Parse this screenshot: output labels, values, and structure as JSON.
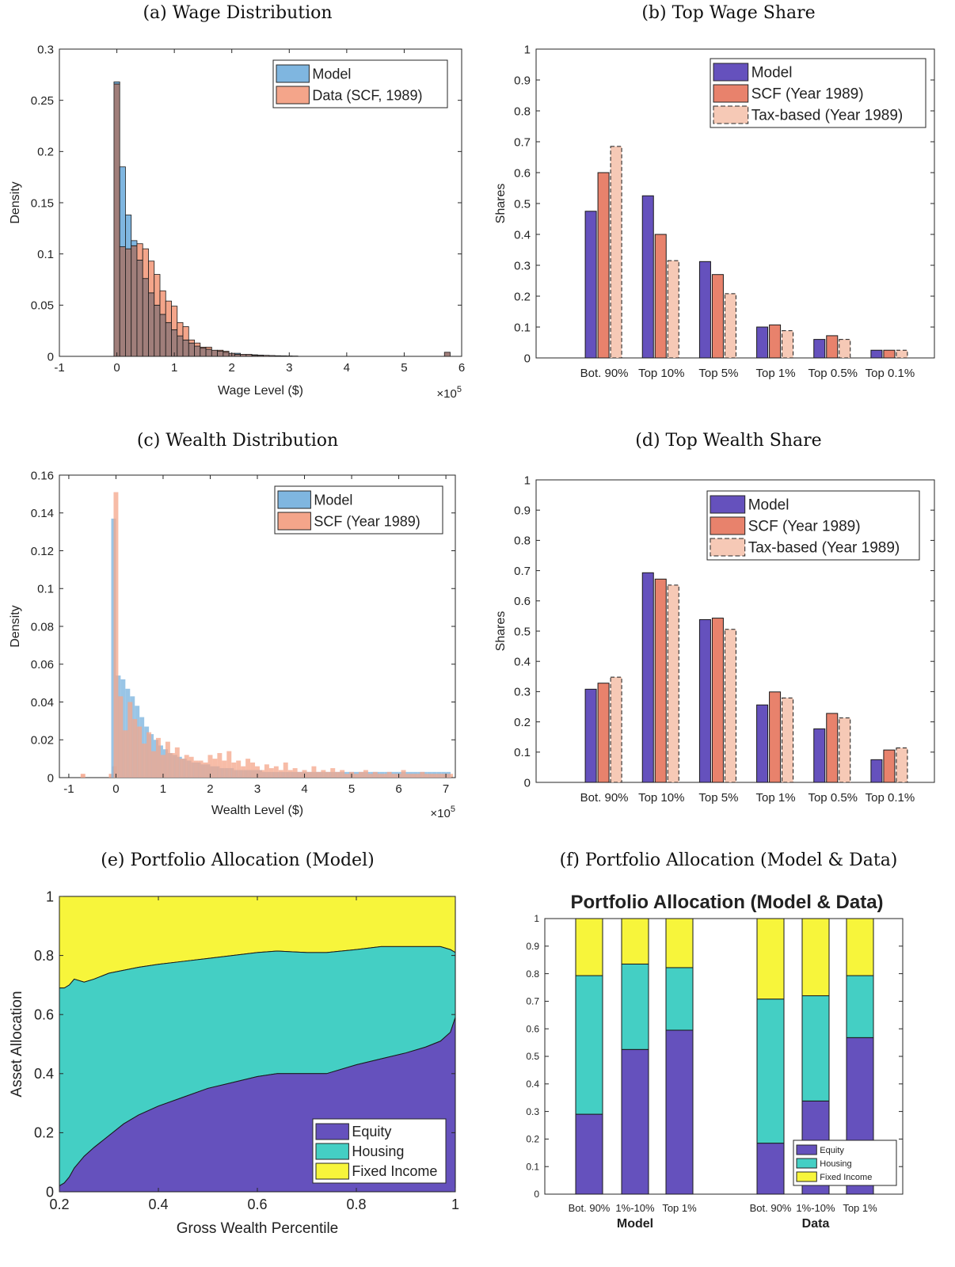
{
  "captions": {
    "a": "(a) Wage Distribution",
    "b": "(b) Top Wage Share",
    "c": "(c) Wealth Distribution",
    "d": "(d) Top Wealth Share",
    "e": "(e) Portfolio Allocation (Model)",
    "f": "(f) Portfolio Allocation (Model & Data)"
  },
  "colors": {
    "model_blue": "#7fb6e0",
    "data_orange": "#f4a58a",
    "overlap": "#a07e7a",
    "model_purple": "#6551bd",
    "scf_red": "#e8826c",
    "tax_pink": "#f6c9b6",
    "equity": "#6551bd",
    "housing": "#44cfc4",
    "fixed_income": "#f7f53b"
  },
  "chart_data": [
    {
      "id": "a",
      "type": "bar",
      "xlabel": "Wage Level ($)",
      "ylabel": "Density",
      "x_multiplier": "×10^5",
      "xlim": [
        -1,
        6
      ],
      "ylim": [
        0,
        0.3
      ],
      "xticks": [
        "-1",
        "0",
        "1",
        "2",
        "3",
        "4",
        "5",
        "6"
      ],
      "yticks": [
        "0",
        "0.05",
        "0.1",
        "0.15",
        "0.2",
        "0.25",
        "0.3"
      ],
      "bin_width": 0.1,
      "bin_start": -0.05,
      "legend": [
        "Model",
        "Data (SCF, 1989)"
      ],
      "series": [
        {
          "name": "Model",
          "values": [
            0.268,
            0.185,
            0.138,
            0.113,
            0.094,
            0.076,
            0.062,
            0.05,
            0.041,
            0.033,
            0.026,
            0.02,
            0.016,
            0.013,
            0.01,
            0.008,
            0.007,
            0.006,
            0.005,
            0.004,
            0.003,
            0.003,
            0.002,
            0.002,
            0.0015,
            0.0012,
            0.001,
            0.0008,
            0.0006,
            0.0005,
            0.0004,
            0.0003
          ]
        },
        {
          "name": "Data (SCF, 1989)",
          "values": [
            0.266,
            0.107,
            0.105,
            0.108,
            0.11,
            0.105,
            0.093,
            0.08,
            0.064,
            0.054,
            0.049,
            0.033,
            0.029,
            0.016,
            0.013,
            0.009,
            0.009,
            0.006,
            0.006,
            0.005,
            0.003,
            0.002,
            0.002,
            0.002,
            0.001,
            0.001,
            0.001,
            0.0008,
            0.0006,
            0.0005,
            0.0004,
            0.0003
          ]
        }
      ],
      "outlier": {
        "x": 5.75,
        "value": 0.004
      }
    },
    {
      "id": "b",
      "type": "bar",
      "ylabel": "Shares",
      "ylim": [
        0,
        1
      ],
      "yticks": [
        "0",
        "0.1",
        "0.2",
        "0.3",
        "0.4",
        "0.5",
        "0.6",
        "0.7",
        "0.8",
        "0.9",
        "1"
      ],
      "categories": [
        "Bot. 90%",
        "Top 10%",
        "Top 5%",
        "Top 1%",
        "Top 0.5%",
        "Top 0.1%"
      ],
      "series": [
        {
          "name": "Model",
          "values": [
            0.475,
            0.525,
            0.312,
            0.1,
            0.06,
            0.025
          ]
        },
        {
          "name": "SCF (Year 1989)",
          "values": [
            0.6,
            0.4,
            0.27,
            0.107,
            0.072,
            0.025
          ]
        },
        {
          "name": "Tax-based (Year 1989)",
          "values": [
            0.685,
            0.315,
            0.208,
            0.088,
            0.06,
            0.025
          ]
        }
      ]
    },
    {
      "id": "c",
      "type": "bar",
      "xlabel": "Wealth Level ($)",
      "ylabel": "Density",
      "x_multiplier": "×10^5",
      "xlim": [
        -1.2,
        7.2
      ],
      "ylim": [
        0,
        0.16
      ],
      "xticks": [
        "-1",
        "0",
        "1",
        "2",
        "3",
        "4",
        "5",
        "6",
        "7"
      ],
      "yticks": [
        "0",
        "0.02",
        "0.04",
        "0.06",
        "0.08",
        "0.1",
        "0.12",
        "0.14",
        "0.16"
      ],
      "legend": [
        "Model",
        "SCF (Year 1989)"
      ],
      "series": [
        {
          "name": "Model",
          "values": [
            0.137,
            0.054,
            0.052,
            0.047,
            0.043,
            0.038,
            0.032,
            0.027,
            0.023,
            0.02,
            0.017,
            0.015,
            0.013,
            0.012,
            0.011,
            0.01,
            0.009,
            0.008,
            0.008,
            0.007,
            0.007,
            0.006,
            0.006,
            0.005,
            0.005,
            0.005,
            0.004,
            0.004,
            0.004,
            0.004,
            0.004,
            0.004,
            0.003,
            0.003,
            0.003,
            0.003,
            0.003,
            0.003,
            0.003,
            0.003,
            0.003,
            0.003,
            0.003,
            0.003,
            0.003,
            0.003,
            0.003,
            0.003,
            0.003,
            0.003,
            0.003,
            0.003,
            0.003,
            0.003,
            0.003,
            0.003,
            0.003,
            0.003,
            0.003,
            0.003,
            0.003,
            0.003,
            0.003,
            0.003,
            0.003,
            0.003,
            0.003,
            0.003,
            0.003,
            0.003,
            0.003,
            0.003
          ]
        },
        {
          "name": "SCF (Year 1989)",
          "values": [
            0.151,
            0.043,
            0.025,
            0.04,
            0.031,
            0.027,
            0.018,
            0.024,
            0.014,
            0.021,
            0.012,
            0.019,
            0.013,
            0.016,
            0.01,
            0.012,
            0.011,
            0.009,
            0.009,
            0.008,
            0.012,
            0.01,
            0.013,
            0.009,
            0.014,
            0.008,
            0.009,
            0.006,
            0.01,
            0.008,
            0.006,
            0.004,
            0.007,
            0.005,
            0.006,
            0.004,
            0.008,
            0.004,
            0.005,
            0.003,
            0.004,
            0.003,
            0.006,
            0.003,
            0.004,
            0.003,
            0.005,
            0.003,
            0.004,
            0.002,
            0.003,
            0.002,
            0.003,
            0.004,
            0.002,
            0.003,
            0.002,
            0.002,
            0.003,
            0.002,
            0.002,
            0.004,
            0.002,
            0.002,
            0.002,
            0.003,
            0.002,
            0.002,
            0.002,
            0.002,
            0.002,
            0.002
          ]
        }
      ]
    },
    {
      "id": "d",
      "type": "bar",
      "ylabel": "Shares",
      "ylim": [
        0,
        1
      ],
      "yticks": [
        "0",
        "0.1",
        "0.2",
        "0.3",
        "0.4",
        "0.5",
        "0.6",
        "0.7",
        "0.8",
        "0.9",
        "1"
      ],
      "categories": [
        "Bot. 90%",
        "Top 10%",
        "Top 5%",
        "Top 1%",
        "Top 0.5%",
        "Top 0.1%"
      ],
      "series": [
        {
          "name": "Model",
          "values": [
            0.308,
            0.693,
            0.538,
            0.256,
            0.177,
            0.075
          ]
        },
        {
          "name": "SCF (Year 1989)",
          "values": [
            0.328,
            0.672,
            0.543,
            0.299,
            0.228,
            0.107
          ]
        },
        {
          "name": "Tax-based (Year 1989)",
          "values": [
            0.348,
            0.652,
            0.506,
            0.279,
            0.213,
            0.114
          ]
        }
      ]
    },
    {
      "id": "e",
      "type": "area",
      "xlabel": "Gross Wealth Percentile",
      "ylabel": "Asset Allocation",
      "xlim": [
        0.2,
        1
      ],
      "ylim": [
        0,
        1
      ],
      "xticks": [
        "0.2",
        "0.4",
        "0.6",
        "0.8",
        "1"
      ],
      "yticks": [
        "0",
        "0.2",
        "0.4",
        "0.6",
        "0.8",
        "1"
      ],
      "x": [
        0.2,
        0.21,
        0.22,
        0.23,
        0.25,
        0.27,
        0.3,
        0.33,
        0.36,
        0.4,
        0.45,
        0.5,
        0.55,
        0.6,
        0.64,
        0.7,
        0.74,
        0.8,
        0.85,
        0.9,
        0.94,
        0.97,
        0.99,
        1.0
      ],
      "series": [
        {
          "name": "Equity",
          "values": [
            0.02,
            0.03,
            0.05,
            0.08,
            0.12,
            0.15,
            0.19,
            0.23,
            0.26,
            0.29,
            0.32,
            0.35,
            0.37,
            0.39,
            0.4,
            0.4,
            0.4,
            0.43,
            0.45,
            0.47,
            0.49,
            0.51,
            0.54,
            0.59
          ]
        },
        {
          "name": "Housing",
          "values": [
            0.67,
            0.66,
            0.65,
            0.64,
            0.59,
            0.57,
            0.55,
            0.52,
            0.5,
            0.48,
            0.46,
            0.44,
            0.43,
            0.42,
            0.415,
            0.41,
            0.41,
            0.39,
            0.38,
            0.36,
            0.34,
            0.32,
            0.28,
            0.22
          ]
        },
        {
          "name": "Fixed Income",
          "values": [
            0.31,
            0.31,
            0.3,
            0.28,
            0.29,
            0.28,
            0.26,
            0.25,
            0.24,
            0.23,
            0.22,
            0.21,
            0.2,
            0.19,
            0.185,
            0.19,
            0.19,
            0.18,
            0.17,
            0.17,
            0.17,
            0.17,
            0.18,
            0.19
          ]
        }
      ]
    },
    {
      "id": "f",
      "type": "bar",
      "title": "Portfolio Allocation (Model & Data)",
      "ylim": [
        0,
        1
      ],
      "yticks": [
        "0",
        "0.1",
        "0.2",
        "0.3",
        "0.4",
        "0.5",
        "0.6",
        "0.7",
        "0.8",
        "0.9",
        "1"
      ],
      "groups": [
        "Model",
        "Data"
      ],
      "categories": [
        "Bot. 90%",
        "1%-10%",
        "Top 1%",
        "Bot. 90%",
        "1%-10%",
        "Top 1%"
      ],
      "series": [
        {
          "name": "Equity",
          "values": [
            0.29,
            0.525,
            0.595,
            0.185,
            0.338,
            0.568
          ]
        },
        {
          "name": "Housing",
          "values": [
            0.503,
            0.31,
            0.227,
            0.523,
            0.382,
            0.225
          ]
        },
        {
          "name": "Fixed Income",
          "values": [
            0.207,
            0.165,
            0.178,
            0.292,
            0.28,
            0.207
          ]
        }
      ]
    }
  ]
}
